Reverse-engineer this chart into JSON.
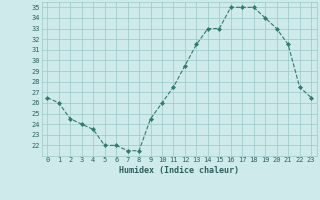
{
  "x": [
    0,
    1,
    2,
    3,
    4,
    5,
    6,
    7,
    8,
    9,
    10,
    11,
    12,
    13,
    14,
    15,
    16,
    17,
    18,
    19,
    20,
    21,
    22,
    23
  ],
  "y": [
    26.5,
    26.0,
    24.5,
    24.0,
    23.5,
    22.0,
    22.0,
    21.5,
    21.5,
    24.5,
    26.0,
    27.5,
    29.5,
    31.5,
    33.0,
    33.0,
    35.0,
    35.0,
    35.0,
    34.0,
    33.0,
    31.5,
    27.5,
    26.5
  ],
  "xlabel": "Humidex (Indice chaleur)",
  "ylim": [
    21.0,
    35.5
  ],
  "xlim": [
    -0.5,
    23.5
  ],
  "yticks": [
    22,
    23,
    24,
    25,
    26,
    27,
    28,
    29,
    30,
    31,
    32,
    33,
    34,
    35
  ],
  "xticks": [
    0,
    1,
    2,
    3,
    4,
    5,
    6,
    7,
    8,
    9,
    10,
    11,
    12,
    13,
    14,
    15,
    16,
    17,
    18,
    19,
    20,
    21,
    22,
    23
  ],
  "line_color": "#2e7d6e",
  "marker_color": "#2e7d6e",
  "bg_color": "#ceeaea",
  "grid_color": "#9ac8c8",
  "font_color": "#2e6060",
  "tick_fontsize": 5.0,
  "xlabel_fontsize": 6.0
}
